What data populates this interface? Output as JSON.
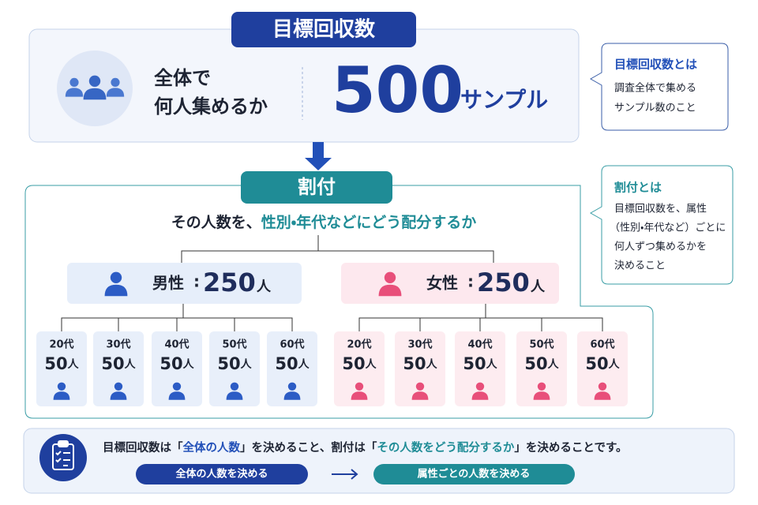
{
  "target": {
    "title": "目標回収数",
    "question": [
      "全体で",
      "何人集めるか"
    ],
    "number": "500",
    "unit": "サンプル"
  },
  "target_note": {
    "title": "目標回収数とは",
    "lines": [
      "調査全体で集める",
      "サンプル数のこと"
    ]
  },
  "allocation": {
    "title": "割付",
    "question_lead": "その人数を、",
    "question_highlight": "性別・年代などにどう配分するか",
    "groups": [
      {
        "label": "男性",
        "separator": ":",
        "count": "250",
        "unit": "人",
        "cells": [
          {
            "age": "20代",
            "count": "50",
            "unit": "人"
          },
          {
            "age": "30代",
            "count": "50",
            "unit": "人"
          },
          {
            "age": "40代",
            "count": "50",
            "unit": "人"
          },
          {
            "age": "50代",
            "count": "50",
            "unit": "人"
          },
          {
            "age": "60代",
            "count": "50",
            "unit": "人"
          }
        ]
      },
      {
        "label": "女性",
        "separator": ":",
        "count": "250",
        "unit": "人",
        "cells": [
          {
            "age": "20代",
            "count": "50",
            "unit": "人"
          },
          {
            "age": "30代",
            "count": "50",
            "unit": "人"
          },
          {
            "age": "40代",
            "count": "50",
            "unit": "人"
          },
          {
            "age": "50代",
            "count": "50",
            "unit": "人"
          },
          {
            "age": "60代",
            "count": "50",
            "unit": "人"
          }
        ]
      }
    ]
  },
  "allocation_note": {
    "title": "割付とは",
    "lines": [
      "目標回収数を、属性",
      "（性別・年代など）ごとに",
      "何人ずつ集めるかを",
      "決めること"
    ]
  },
  "footer": {
    "sentence": [
      "目標回収数は「",
      "全体の人数",
      "」を決めること、割付は「",
      "その人数をどう配分するか",
      "」を決めることです。"
    ],
    "left_pill": "全体の人数を決める",
    "right_pill": "属性ごとの人数を決める"
  }
}
